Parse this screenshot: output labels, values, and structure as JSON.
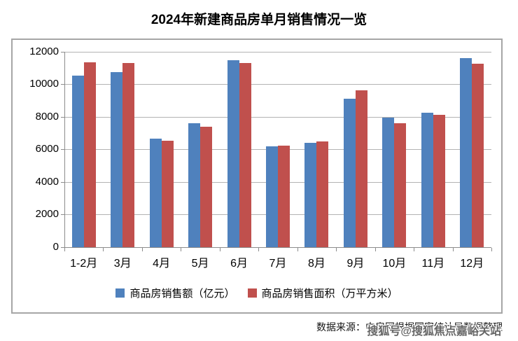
{
  "title": "2024年新建商品房单月销售情况一览",
  "source_note": "数据来源：中房网根据国家统计局数据整理",
  "watermark": "搜狐号@搜狐焦点嘉峪关站",
  "colors": {
    "series_amount_blue": "#4F81BD",
    "series_area_red": "#C0504D",
    "gridline": "#b3b3b3",
    "axis": "#8c8c8c",
    "chart_border": "#a6a6a6"
  },
  "chart_data": {
    "type": "bar",
    "title": "2024年新建商品房单月销售情况一览",
    "categories": [
      "1-2月",
      "3月",
      "4月",
      "5月",
      "6月",
      "7月",
      "8月",
      "9月",
      "10月",
      "11月",
      "12月"
    ],
    "series": [
      {
        "name": "商品房销售额（亿元）",
        "color": "#4F81BD",
        "values": [
          10550,
          10750,
          6650,
          7600,
          11500,
          6200,
          6400,
          9100,
          7950,
          8250,
          11600
        ]
      },
      {
        "name": "商品房销售面积（万平方米）",
        "color": "#C0504D",
        "values": [
          11350,
          11300,
          6550,
          7400,
          11300,
          6250,
          6500,
          9650,
          7600,
          8150,
          11250
        ]
      }
    ],
    "xlabel": "",
    "ylabel": "",
    "ylim": [
      0,
      12000
    ],
    "ytick_interval": 2000,
    "yticks": [
      0,
      2000,
      4000,
      6000,
      8000,
      10000,
      12000
    ],
    "grid": true,
    "legend_position": "bottom"
  }
}
